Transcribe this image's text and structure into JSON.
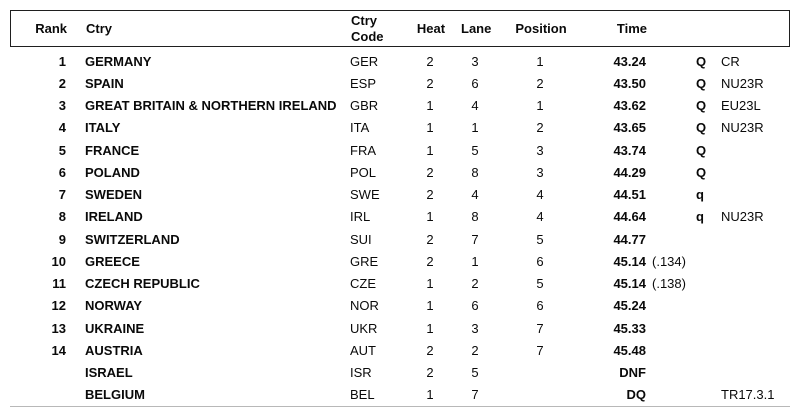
{
  "colors": {
    "background": "#ffffff",
    "text": "#0a0a0a",
    "header_border": "#1f1f1f",
    "bottom_rule": "#b8b8b8"
  },
  "table": {
    "header": {
      "rank": "Rank",
      "ctry": "Ctry",
      "ctry_code": "Ctry Code",
      "heat": "Heat",
      "lane": "Lane",
      "position": "Position",
      "time": "Time"
    },
    "rows": [
      {
        "rank": "1",
        "ctry": "GERMANY",
        "code": "GER",
        "heat": "2",
        "lane": "3",
        "position": "1",
        "time": "43.24",
        "frac": "",
        "qual": "Q",
        "record": "CR"
      },
      {
        "rank": "2",
        "ctry": "SPAIN",
        "code": "ESP",
        "heat": "2",
        "lane": "6",
        "position": "2",
        "time": "43.50",
        "frac": "",
        "qual": "Q",
        "record": "NU23R"
      },
      {
        "rank": "3",
        "ctry": "GREAT BRITAIN & NORTHERN IRELAND",
        "code": "GBR",
        "heat": "1",
        "lane": "4",
        "position": "1",
        "time": "43.62",
        "frac": "",
        "qual": "Q",
        "record": "EU23L"
      },
      {
        "rank": "4",
        "ctry": "ITALY",
        "code": "ITA",
        "heat": "1",
        "lane": "1",
        "position": "2",
        "time": "43.65",
        "frac": "",
        "qual": "Q",
        "record": "NU23R"
      },
      {
        "rank": "5",
        "ctry": "FRANCE",
        "code": "FRA",
        "heat": "1",
        "lane": "5",
        "position": "3",
        "time": "43.74",
        "frac": "",
        "qual": "Q",
        "record": ""
      },
      {
        "rank": "6",
        "ctry": "POLAND",
        "code": "POL",
        "heat": "2",
        "lane": "8",
        "position": "3",
        "time": "44.29",
        "frac": "",
        "qual": "Q",
        "record": ""
      },
      {
        "rank": "7",
        "ctry": "SWEDEN",
        "code": "SWE",
        "heat": "2",
        "lane": "4",
        "position": "4",
        "time": "44.51",
        "frac": "",
        "qual": "q",
        "record": ""
      },
      {
        "rank": "8",
        "ctry": "IRELAND",
        "code": "IRL",
        "heat": "1",
        "lane": "8",
        "position": "4",
        "time": "44.64",
        "frac": "",
        "qual": "q",
        "record": "NU23R"
      },
      {
        "rank": "9",
        "ctry": "SWITZERLAND",
        "code": "SUI",
        "heat": "2",
        "lane": "7",
        "position": "5",
        "time": "44.77",
        "frac": "",
        "qual": "",
        "record": ""
      },
      {
        "rank": "10",
        "ctry": "GREECE",
        "code": "GRE",
        "heat": "2",
        "lane": "1",
        "position": "6",
        "time": "45.14",
        "frac": "(.134)",
        "qual": "",
        "record": ""
      },
      {
        "rank": "11",
        "ctry": "CZECH REPUBLIC",
        "code": "CZE",
        "heat": "1",
        "lane": "2",
        "position": "5",
        "time": "45.14",
        "frac": "(.138)",
        "qual": "",
        "record": ""
      },
      {
        "rank": "12",
        "ctry": "NORWAY",
        "code": "NOR",
        "heat": "1",
        "lane": "6",
        "position": "6",
        "time": "45.24",
        "frac": "",
        "qual": "",
        "record": ""
      },
      {
        "rank": "13",
        "ctry": "UKRAINE",
        "code": "UKR",
        "heat": "1",
        "lane": "3",
        "position": "7",
        "time": "45.33",
        "frac": "",
        "qual": "",
        "record": ""
      },
      {
        "rank": "14",
        "ctry": "AUSTRIA",
        "code": "AUT",
        "heat": "2",
        "lane": "2",
        "position": "7",
        "time": "45.48",
        "frac": "",
        "qual": "",
        "record": ""
      },
      {
        "rank": "",
        "ctry": "ISRAEL",
        "code": "ISR",
        "heat": "2",
        "lane": "5",
        "position": "",
        "time": "DNF",
        "frac": "",
        "qual": "",
        "record": ""
      },
      {
        "rank": "",
        "ctry": "BELGIUM",
        "code": "BEL",
        "heat": "1",
        "lane": "7",
        "position": "",
        "time": "DQ",
        "frac": "",
        "qual": "",
        "record": "TR17.3.1"
      }
    ]
  }
}
